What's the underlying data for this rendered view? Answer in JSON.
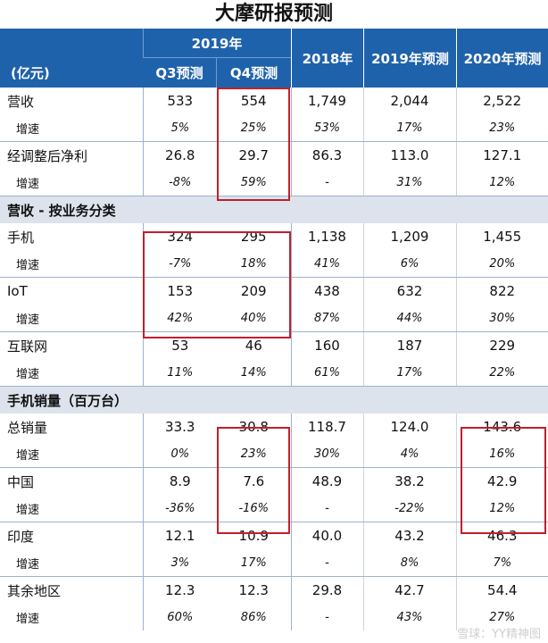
{
  "title": "大摩研报预测",
  "header": {
    "unit": "(亿元)",
    "year2019": "2019年",
    "q3": "Q3预测",
    "q4": "Q4预测",
    "y2018": "2018年",
    "y2019f": "2019年预测",
    "y2020f": "2020年预测"
  },
  "colors": {
    "header_bg": "#1f62ac",
    "section_bg": "#dde3ec",
    "highlight": "#c0202a"
  },
  "sections": {
    "biz": "营收 - 按业务分类",
    "phone": "手机销量（百万台）"
  },
  "rows": [
    {
      "label": "营收",
      "v": [
        "533",
        "554",
        "1,749",
        "2,044",
        "2,522"
      ]
    },
    {
      "label": "增速",
      "v": [
        "5%",
        "25%",
        "53%",
        "17%",
        "23%"
      ]
    },
    {
      "label": "经调整后净利",
      "v": [
        "26.8",
        "29.7",
        "86.3",
        "113.0",
        "127.1"
      ]
    },
    {
      "label": "增速",
      "v": [
        "-8%",
        "59%",
        "-",
        "31%",
        "12%"
      ]
    },
    {
      "label": "手机",
      "v": [
        "324",
        "295",
        "1,138",
        "1,209",
        "1,455"
      ]
    },
    {
      "label": "增速",
      "v": [
        "-7%",
        "18%",
        "41%",
        "6%",
        "20%"
      ]
    },
    {
      "label": "IoT",
      "v": [
        "153",
        "209",
        "438",
        "632",
        "822"
      ]
    },
    {
      "label": "增速",
      "v": [
        "42%",
        "40%",
        "87%",
        "44%",
        "30%"
      ]
    },
    {
      "label": "互联网",
      "v": [
        "53",
        "46",
        "160",
        "187",
        "229"
      ]
    },
    {
      "label": "增速",
      "v": [
        "11%",
        "14%",
        "61%",
        "17%",
        "22%"
      ]
    },
    {
      "label": "总销量",
      "v": [
        "33.3",
        "30.8",
        "118.7",
        "124.0",
        "143.6"
      ]
    },
    {
      "label": "增速",
      "v": [
        "0%",
        "23%",
        "30%",
        "4%",
        "16%"
      ]
    },
    {
      "label": "中国",
      "v": [
        "8.9",
        "7.6",
        "48.9",
        "38.2",
        "42.9"
      ]
    },
    {
      "label": "增速",
      "v": [
        "-36%",
        "-16%",
        "-",
        "-22%",
        "12%"
      ]
    },
    {
      "label": "印度",
      "v": [
        "12.1",
        "10.9",
        "40.0",
        "43.2",
        "46.3"
      ]
    },
    {
      "label": "增速",
      "v": [
        "3%",
        "17%",
        "-",
        "8%",
        "7%"
      ]
    },
    {
      "label": "其余地区",
      "v": [
        "12.3",
        "12.3",
        "29.8",
        "42.7",
        "54.4"
      ]
    },
    {
      "label": "增速",
      "v": [
        "60%",
        "86%",
        "-",
        "43%",
        "27%"
      ]
    }
  ],
  "watermark": "雪球：YY精神图"
}
